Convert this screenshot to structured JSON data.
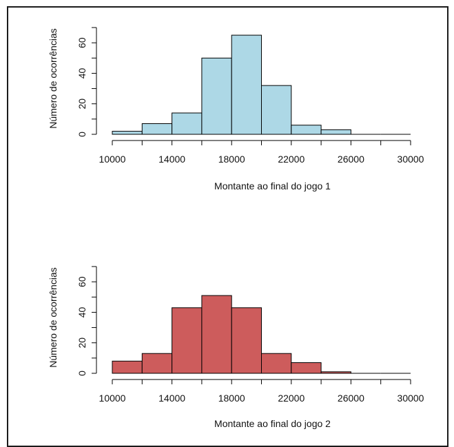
{
  "chart_data": [
    {
      "type": "histogram",
      "xlabel": "Montante ao final do jogo 1",
      "ylabel": "Número de ocorrências",
      "bin_edges": [
        10000,
        12000,
        14000,
        16000,
        18000,
        20000,
        22000,
        24000,
        26000,
        28000,
        30000
      ],
      "values": [
        2,
        7,
        14,
        50,
        65,
        32,
        6,
        3,
        0,
        0
      ],
      "x_ticks": [
        10000,
        14000,
        18000,
        22000,
        26000,
        30000
      ],
      "x_tick_labels": [
        "10000",
        "14000",
        "18000",
        "22000",
        "26000",
        "30000"
      ],
      "y_ticks": [
        0,
        20,
        40,
        60
      ],
      "y_tick_labels": [
        "0",
        "20",
        "40",
        "60"
      ],
      "xlim": [
        10000,
        30000
      ],
      "ylim": [
        0,
        70
      ],
      "bar_color": "#add8e6",
      "edge_color": "#000000",
      "grid": false
    },
    {
      "type": "histogram",
      "xlabel": "Montante ao final do jogo 2",
      "ylabel": "Número de ocorrências",
      "bin_edges": [
        10000,
        12000,
        14000,
        16000,
        18000,
        20000,
        22000,
        24000,
        26000,
        28000,
        30000
      ],
      "values": [
        8,
        13,
        43,
        51,
        43,
        13,
        7,
        1,
        0,
        0
      ],
      "x_ticks": [
        10000,
        14000,
        18000,
        22000,
        26000,
        30000
      ],
      "x_tick_labels": [
        "10000",
        "14000",
        "18000",
        "22000",
        "26000",
        "30000"
      ],
      "y_ticks": [
        0,
        20,
        40,
        60
      ],
      "y_tick_labels": [
        "0",
        "20",
        "40",
        "60"
      ],
      "xlim": [
        10000,
        30000
      ],
      "ylim": [
        0,
        70
      ],
      "bar_color": "#cd5c5c",
      "edge_color": "#000000",
      "grid": false
    }
  ]
}
